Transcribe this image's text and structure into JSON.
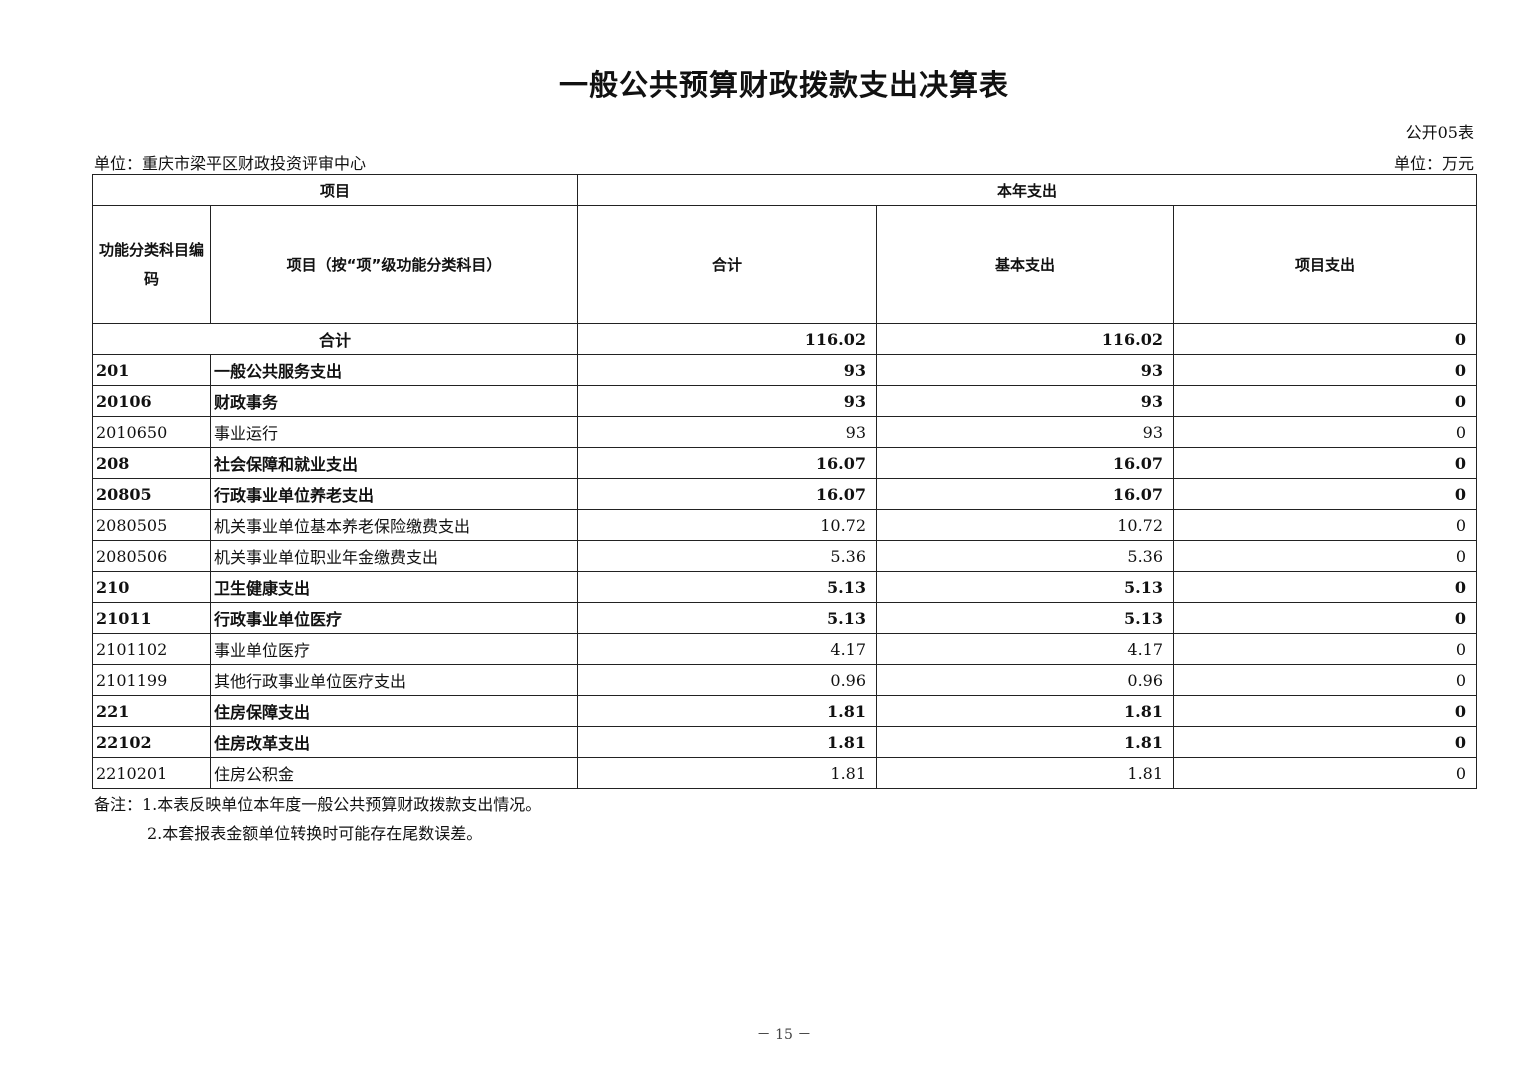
{
  "title": "一般公共预算财政拨款支出决算表",
  "form_number": "公开05表",
  "unit_org": "单位：重庆市梁平区财政投资评审中心",
  "unit_currency": "单位：万元",
  "header": {
    "project": "项目",
    "current_year": "本年支出",
    "code": "功能分类科目编码",
    "item": "项目（按“项”级功能分类科目）",
    "total": "合计",
    "basic": "基本支出",
    "project_exp": "项目支出"
  },
  "total_row": {
    "label": "合计",
    "total": "116.02",
    "basic": "116.02",
    "project": "0"
  },
  "rows": [
    {
      "code": "201",
      "name": "一般公共服务支出",
      "total": "93",
      "basic": "93",
      "project": "0"
    },
    {
      "code": "20106",
      "name": "财政事务",
      "total": "93",
      "basic": "93",
      "project": "0"
    },
    {
      "code": "2010650",
      "name": "事业运行",
      "total": "93",
      "basic": "93",
      "project": "0"
    },
    {
      "code": "208",
      "name": "社会保障和就业支出",
      "total": "16.07",
      "basic": "16.07",
      "project": "0"
    },
    {
      "code": "20805",
      "name": "行政事业单位养老支出",
      "total": "16.07",
      "basic": "16.07",
      "project": "0"
    },
    {
      "code": "2080505",
      "name": "机关事业单位基本养老保险缴费支出",
      "total": "10.72",
      "basic": "10.72",
      "project": "0"
    },
    {
      "code": "2080506",
      "name": "机关事业单位职业年金缴费支出",
      "total": "5.36",
      "basic": "5.36",
      "project": "0"
    },
    {
      "code": "210",
      "name": "卫生健康支出",
      "total": "5.13",
      "basic": "5.13",
      "project": "0"
    },
    {
      "code": "21011",
      "name": "行政事业单位医疗",
      "total": "5.13",
      "basic": "5.13",
      "project": "0"
    },
    {
      "code": "2101102",
      "name": "事业单位医疗",
      "total": "4.17",
      "basic": "4.17",
      "project": "0"
    },
    {
      "code": "2101199",
      "name": "其他行政事业单位医疗支出",
      "total": "0.96",
      "basic": "0.96",
      "project": "0"
    },
    {
      "code": "221",
      "name": "住房保障支出",
      "total": "1.81",
      "basic": "1.81",
      "project": "0"
    },
    {
      "code": "22102",
      "name": "住房改革支出",
      "total": "1.81",
      "basic": "1.81",
      "project": "0"
    },
    {
      "code": "2210201",
      "name": "住房公积金",
      "total": "1.81",
      "basic": "1.81",
      "project": "0"
    }
  ],
  "notes": [
    "备注：1.本表反映单位本年度一般公共预算财政拨款支出情况。",
    "2.本套报表金额单位转换时可能存在尾数误差。"
  ],
  "page_number": "－ 15 －"
}
